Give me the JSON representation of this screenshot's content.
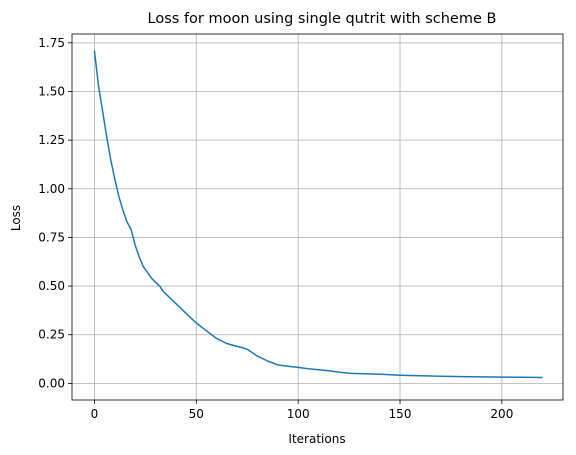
{
  "chart_data": {
    "type": "line",
    "title": "Loss for moon using single qutrit with scheme B",
    "xlabel": "Iterations",
    "ylabel": "Loss",
    "xlim": [
      -11,
      230
    ],
    "ylim": [
      -0.0855,
      1.7955
    ],
    "xticks": [
      0,
      50,
      100,
      150,
      200
    ],
    "xtick_labels": [
      "0",
      "50",
      "100",
      "150",
      "200"
    ],
    "yticks": [
      0.0,
      0.25,
      0.5,
      0.75,
      1.0,
      1.25,
      1.5,
      1.75
    ],
    "ytick_labels": [
      "0.00",
      "0.25",
      "0.50",
      "0.75",
      "1.00",
      "1.25",
      "1.50",
      "1.75"
    ],
    "grid": true,
    "line_color": "#1f77b4",
    "series": [
      {
        "x": [
          0,
          2,
          4,
          6,
          8,
          10,
          12,
          14,
          16,
          18,
          20,
          22,
          24,
          26,
          28,
          30,
          32,
          34,
          36,
          38,
          40,
          42,
          44,
          46,
          48,
          50,
          55,
          60,
          65,
          70,
          72,
          75,
          80,
          85,
          90,
          95,
          100,
          105,
          110,
          115,
          120,
          125,
          130,
          140,
          150,
          160,
          170,
          180,
          190,
          200,
          210,
          220
        ],
        "values": [
          1.71,
          1.53,
          1.4,
          1.27,
          1.15,
          1.05,
          0.96,
          0.89,
          0.83,
          0.79,
          0.71,
          0.65,
          0.6,
          0.57,
          0.54,
          0.52,
          0.5,
          0.47,
          0.45,
          0.43,
          0.41,
          0.39,
          0.37,
          0.35,
          0.33,
          0.31,
          0.27,
          0.23,
          0.205,
          0.19,
          0.185,
          0.175,
          0.14,
          0.115,
          0.095,
          0.088,
          0.082,
          0.075,
          0.07,
          0.065,
          0.058,
          0.052,
          0.05,
          0.047,
          0.042,
          0.039,
          0.037,
          0.035,
          0.033,
          0.032,
          0.031,
          0.03
        ]
      }
    ]
  }
}
